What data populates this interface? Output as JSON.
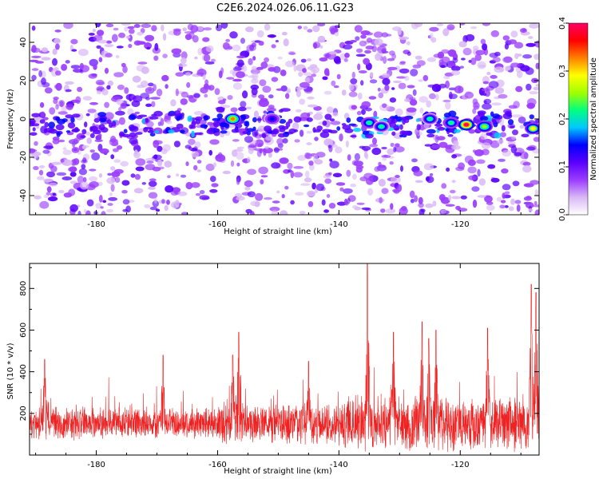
{
  "title": "C2E6.2024.026.06.11.G23",
  "colors": {
    "frame": "#000000",
    "snr_line": "#ee2222",
    "colormap": [
      "#ffffff",
      "#d9b8f5",
      "#9b3cff",
      "#5a00ff",
      "#0000ff",
      "#00c8ff",
      "#00ff80",
      "#a0ff00",
      "#ffff00",
      "#ff8000",
      "#ff0000",
      "#ff0066"
    ]
  },
  "chart_data": [
    {
      "type": "heatmap",
      "xlabel": "Height of straight line (km)",
      "ylabel": "Frequency (Hz)",
      "xlim": [
        -191,
        -107
      ],
      "ylim": [
        -50,
        50
      ],
      "xticks": [
        -180,
        -160,
        -140,
        -120
      ],
      "yticks": [
        -40,
        -20,
        0,
        20,
        40
      ],
      "colorbar": {
        "label": "Normalized spectral amplitude",
        "range": [
          0.0,
          0.4
        ],
        "ticks": [
          0.0,
          0.1,
          0.2,
          0.3,
          0.4
        ]
      },
      "band": {
        "center_hz": -3,
        "halfwidth_hz": 6
      },
      "hotspots": [
        {
          "x": -157.5,
          "y": 0,
          "value": 0.32
        },
        {
          "x": -151,
          "y": 0,
          "value": 0.14
        },
        {
          "x": -135,
          "y": -2,
          "value": 0.22
        },
        {
          "x": -133,
          "y": -4,
          "value": 0.2
        },
        {
          "x": -125,
          "y": 0,
          "value": 0.2
        },
        {
          "x": -121.5,
          "y": -2,
          "value": 0.22
        },
        {
          "x": -119,
          "y": -3,
          "value": 0.4
        },
        {
          "x": -116,
          "y": -4,
          "value": 0.24
        },
        {
          "x": -108,
          "y": -5,
          "value": 0.28
        }
      ]
    },
    {
      "type": "line",
      "xlabel": "Height of straight line (km)",
      "ylabel": "SNR (10 * v/v)",
      "xlim": [
        -191,
        -107
      ],
      "ylim": [
        0,
        920
      ],
      "xticks": [
        -180,
        -160,
        -140,
        -120
      ],
      "yticks": [
        200,
        400,
        600,
        800
      ],
      "series": [
        {
          "baseline": 150,
          "peaks": [
            {
              "x": -188.5,
              "y": 460
            },
            {
              "x": -169,
              "y": 480
            },
            {
              "x": -157.5,
              "y": 480
            },
            {
              "x": -156.5,
              "y": 590
            },
            {
              "x": -145,
              "y": 450
            },
            {
              "x": -135.3,
              "y": 920
            },
            {
              "x": -131,
              "y": 590
            },
            {
              "x": -126.3,
              "y": 640
            },
            {
              "x": -125.2,
              "y": 560
            },
            {
              "x": -124,
              "y": 600
            },
            {
              "x": -115.5,
              "y": 610
            },
            {
              "x": -108.3,
              "y": 820
            },
            {
              "x": -107.5,
              "y": 780
            }
          ]
        }
      ]
    }
  ]
}
